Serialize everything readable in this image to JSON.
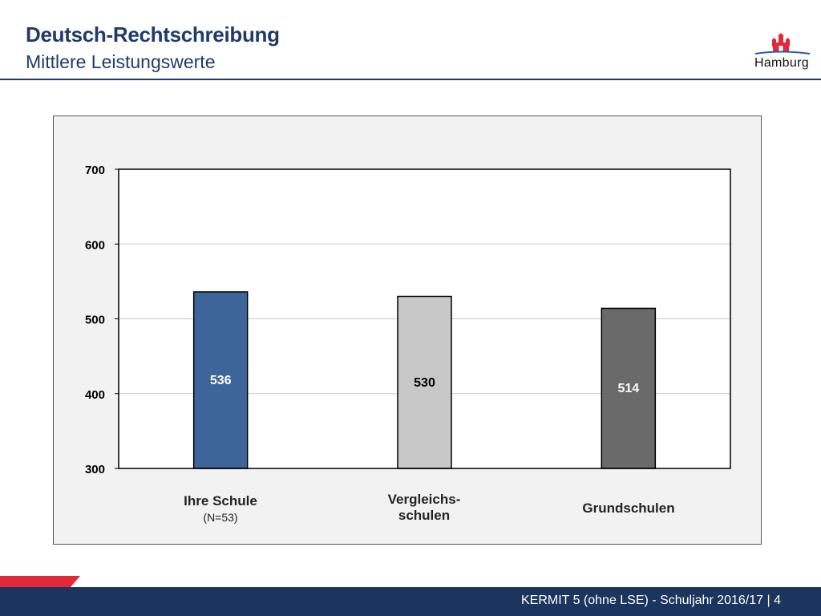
{
  "header": {
    "title": "Deutsch-Rechtschreibung",
    "subtitle": "Mittlere Leistungswerte",
    "logo_text": "Hamburg"
  },
  "footer": {
    "text": "KERMIT 5 (ohne LSE) - Schuljahr 2016/17 | 4"
  },
  "chart_data": {
    "type": "bar",
    "categories": [
      "Ihre Schule",
      "Vergleichs-schulen",
      "Grundschulen"
    ],
    "category_sublabels": [
      "(N=53)",
      "",
      ""
    ],
    "values": [
      536,
      530,
      514
    ],
    "value_labels": [
      "536",
      "530",
      "514"
    ],
    "colors": [
      "#3e6599",
      "#c8c8c8",
      "#6a6a6a"
    ],
    "label_colors": [
      "#ffffff",
      "#000000",
      "#ffffff"
    ],
    "ylim": [
      300,
      700
    ],
    "yticks": [
      300,
      400,
      500,
      600,
      700
    ],
    "grid": true
  },
  "colors": {
    "accent": "#1f3b6b",
    "footer": "#1b355f",
    "footer_red": "#e2283a"
  }
}
